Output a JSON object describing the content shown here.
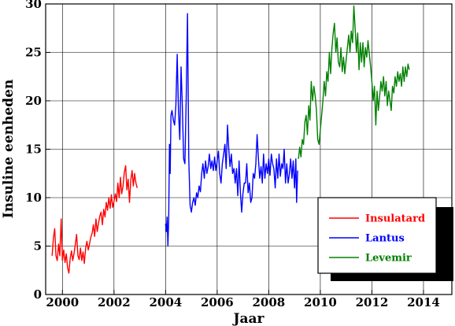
{
  "chart_data": {
    "type": "line",
    "title": "",
    "xlabel": "Jaar",
    "ylabel": "Insuline eenheden",
    "xlim": [
      1999.35,
      2015.1
    ],
    "ylim": [
      0,
      30
    ],
    "xticks": [
      2000,
      2002,
      2004,
      2006,
      2008,
      2010,
      2012,
      2014
    ],
    "xtick_labels": [
      "2000",
      "2002",
      "2004",
      "2006",
      "2008",
      "2010",
      "2012",
      "2014"
    ],
    "yticks": [
      0,
      5,
      10,
      15,
      20,
      25,
      30
    ],
    "ytick_labels": [
      "0",
      "5",
      "10",
      "15",
      "20",
      "25",
      "30"
    ],
    "grid": true,
    "legend_position": "lower-right",
    "series": [
      {
        "name": "Insulatard",
        "color": "#ff0000",
        "x": [
          1999.6,
          1999.65,
          1999.7,
          1999.75,
          1999.8,
          1999.85,
          1999.9,
          1999.95,
          2000.0,
          2000.05,
          2000.1,
          2000.15,
          2000.2,
          2000.25,
          2000.3,
          2000.35,
          2000.4,
          2000.45,
          2000.5,
          2000.55,
          2000.6,
          2000.65,
          2000.7,
          2000.75,
          2000.8,
          2000.85,
          2000.9,
          2000.95,
          2001.0,
          2001.05,
          2001.1,
          2001.15,
          2001.2,
          2001.25,
          2001.3,
          2001.35,
          2001.4,
          2001.45,
          2001.5,
          2001.55,
          2001.6,
          2001.65,
          2001.7,
          2001.75,
          2001.8,
          2001.85,
          2001.9,
          2001.95,
          2002.0,
          2002.05,
          2002.1,
          2002.15,
          2002.2,
          2002.25,
          2002.3,
          2002.35,
          2002.4,
          2002.45,
          2002.5,
          2002.55,
          2002.6,
          2002.65,
          2002.7,
          2002.75,
          2002.8,
          2002.85,
          2002.9
        ],
        "values": [
          4.0,
          5.8,
          6.8,
          4.0,
          3.5,
          5.2,
          4.0,
          7.8,
          3.5,
          4.6,
          3.3,
          4.2,
          2.8,
          2.2,
          3.7,
          4.5,
          3.5,
          4.2,
          5.2,
          6.2,
          4.0,
          3.6,
          4.8,
          3.5,
          4.4,
          3.2,
          4.8,
          5.5,
          4.6,
          5.2,
          5.9,
          6.3,
          7.2,
          6.0,
          7.8,
          6.5,
          7.4,
          8.1,
          8.5,
          7.2,
          8.8,
          8.0,
          9.5,
          8.7,
          10.0,
          8.9,
          10.3,
          9.0,
          9.6,
          10.4,
          9.6,
          11.5,
          10.0,
          12.1,
          10.4,
          11.2,
          12.6,
          13.3,
          10.8,
          11.9,
          9.5,
          11.8,
          12.8,
          11.2,
          12.5,
          11.5,
          11.0
        ]
      },
      {
        "name": "Lantus",
        "color": "#0000ff",
        "x": [
          2004.0,
          2004.03,
          2004.06,
          2004.09,
          2004.12,
          2004.15,
          2004.18,
          2004.21,
          2004.25,
          2004.3,
          2004.35,
          2004.4,
          2004.45,
          2004.5,
          2004.55,
          2004.6,
          2004.65,
          2004.7,
          2004.75,
          2004.8,
          2004.85,
          2004.9,
          2004.95,
          2005.0,
          2005.05,
          2005.1,
          2005.15,
          2005.2,
          2005.25,
          2005.3,
          2005.35,
          2005.4,
          2005.45,
          2005.5,
          2005.55,
          2005.6,
          2005.65,
          2005.7,
          2005.75,
          2005.8,
          2005.85,
          2005.9,
          2005.95,
          2006.0,
          2006.05,
          2006.1,
          2006.15,
          2006.2,
          2006.25,
          2006.3,
          2006.35,
          2006.4,
          2006.45,
          2006.5,
          2006.55,
          2006.6,
          2006.65,
          2006.7,
          2006.75,
          2006.8,
          2006.85,
          2006.9,
          2006.95,
          2007.0,
          2007.05,
          2007.1,
          2007.15,
          2007.2,
          2007.25,
          2007.3,
          2007.35,
          2007.4,
          2007.45,
          2007.5,
          2007.55,
          2007.6,
          2007.65,
          2007.7,
          2007.75,
          2007.8,
          2007.85,
          2007.9,
          2007.95,
          2008.0,
          2008.05,
          2008.1,
          2008.15,
          2008.2,
          2008.25,
          2008.3,
          2008.35,
          2008.4,
          2008.45,
          2008.5,
          2008.55,
          2008.6,
          2008.65,
          2008.7,
          2008.75,
          2008.8,
          2008.85,
          2008.9,
          2008.95,
          2009.0,
          2009.05,
          2009.08,
          2009.12
        ],
        "values": [
          7.3,
          6.5,
          8.0,
          5.0,
          7.8,
          15.5,
          12.5,
          18.5,
          19.0,
          18.0,
          17.5,
          19.5,
          24.8,
          19.0,
          16.0,
          23.5,
          19.5,
          14.0,
          13.5,
          20.5,
          29.0,
          14.0,
          9.2,
          8.5,
          9.5,
          10.0,
          9.2,
          10.5,
          10.0,
          11.2,
          10.6,
          12.5,
          13.5,
          12.0,
          13.8,
          12.5,
          13.2,
          14.5,
          13.0,
          13.8,
          12.8,
          14.2,
          12.8,
          13.8,
          14.8,
          12.5,
          11.5,
          13.5,
          14.5,
          15.5,
          13.0,
          17.5,
          15.0,
          13.2,
          14.5,
          12.5,
          13.0,
          11.5,
          13.0,
          10.2,
          13.8,
          10.5,
          8.5,
          10.4,
          11.5,
          11.5,
          13.5,
          10.5,
          11.5,
          9.5,
          10.0,
          12.5,
          12.0,
          13.5,
          16.5,
          14.0,
          12.0,
          13.2,
          11.5,
          14.5,
          12.0,
          13.5,
          12.5,
          14.0,
          12.3,
          14.5,
          13.5,
          13.0,
          11.0,
          14.0,
          12.0,
          14.5,
          12.2,
          13.5,
          13.0,
          15.0,
          11.5,
          13.5,
          11.5,
          12.5,
          14.0,
          12.0,
          13.8,
          11.0,
          14.0,
          9.5,
          12.8
        ]
      },
      {
        "name": "Levemir",
        "color": "#008000",
        "x": [
          2009.15,
          2009.2,
          2009.25,
          2009.3,
          2009.35,
          2009.4,
          2009.45,
          2009.5,
          2009.55,
          2009.6,
          2009.65,
          2009.7,
          2009.75,
          2009.8,
          2009.85,
          2009.9,
          2009.95,
          2010.0,
          2010.05,
          2010.1,
          2010.15,
          2010.2,
          2010.25,
          2010.3,
          2010.35,
          2010.4,
          2010.45,
          2010.5,
          2010.55,
          2010.6,
          2010.65,
          2010.7,
          2010.75,
          2010.8,
          2010.85,
          2010.9,
          2010.95,
          2011.0,
          2011.05,
          2011.1,
          2011.15,
          2011.2,
          2011.25,
          2011.3,
          2011.35,
          2011.4,
          2011.45,
          2011.5,
          2011.55,
          2011.6,
          2011.65,
          2011.7,
          2011.75,
          2011.8,
          2011.85,
          2011.9,
          2011.95,
          2012.0,
          2012.05,
          2012.1,
          2012.15,
          2012.2,
          2012.25,
          2012.3,
          2012.35,
          2012.4,
          2012.45,
          2012.5,
          2012.55,
          2012.6,
          2012.65,
          2012.7,
          2012.75,
          2012.8,
          2012.85,
          2012.9,
          2012.95,
          2013.0,
          2013.05,
          2013.1,
          2013.15,
          2013.2,
          2013.25,
          2013.3,
          2013.35,
          2013.4,
          2013.45
        ],
        "values": [
          14.0,
          15.2,
          14.2,
          16.0,
          15.5,
          17.8,
          18.5,
          16.5,
          19.5,
          18.0,
          22.0,
          20.0,
          21.5,
          20.5,
          19.0,
          16.0,
          15.5,
          17.0,
          18.5,
          20.0,
          22.0,
          20.5,
          23.0,
          22.0,
          25.0,
          22.8,
          25.5,
          27.0,
          28.0,
          25.0,
          26.5,
          24.0,
          23.5,
          25.5,
          23.0,
          24.5,
          22.8,
          24.2,
          25.5,
          26.8,
          25.0,
          27.2,
          26.0,
          29.8,
          27.5,
          25.0,
          27.0,
          23.2,
          26.0,
          24.0,
          26.0,
          23.5,
          25.5,
          24.5,
          26.2,
          24.8,
          23.5,
          22.0,
          20.0,
          21.5,
          17.5,
          21.0,
          19.0,
          20.5,
          22.0,
          21.0,
          22.5,
          20.5,
          22.0,
          19.5,
          21.0,
          20.0,
          19.0,
          21.5,
          20.8,
          22.5,
          21.5,
          23.0,
          22.0,
          22.8,
          21.5,
          23.5,
          22.0,
          23.5,
          22.5,
          23.8,
          23.2
        ]
      }
    ]
  }
}
